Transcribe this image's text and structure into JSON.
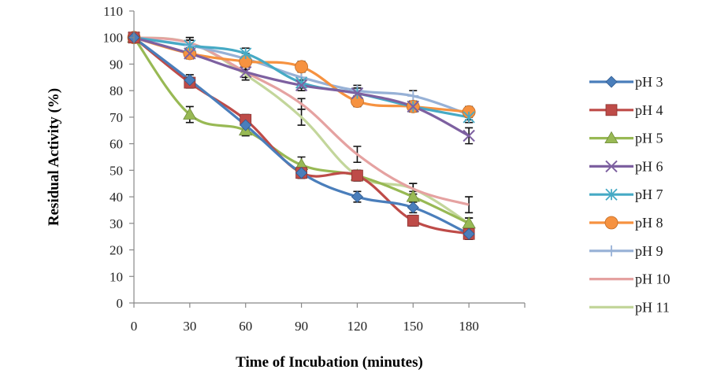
{
  "chart_data": {
    "type": "line",
    "title": "",
    "xlabel": "Time of Incubation (minutes)",
    "ylabel": "Residual Activity (%)",
    "x": [
      0,
      30,
      60,
      90,
      120,
      150,
      180
    ],
    "xlim": [
      0,
      210
    ],
    "ylim": [
      0,
      110
    ],
    "x_ticks": [
      "0",
      "30",
      "60",
      "90",
      "120",
      "150",
      "180"
    ],
    "y_ticks": [
      "0",
      "10",
      "20",
      "30",
      "40",
      "50",
      "60",
      "70",
      "80",
      "90",
      "100",
      "110"
    ],
    "grid": false,
    "legend_position": "right",
    "series": [
      {
        "name": "pH 3",
        "color": "#4A7EBB",
        "marker": "diamond",
        "values": [
          100,
          84,
          67,
          49,
          40,
          36,
          26
        ],
        "errors": [
          2,
          2,
          2,
          2,
          2,
          2,
          2
        ]
      },
      {
        "name": "pH 4",
        "color": "#BE4B48",
        "marker": "square",
        "values": [
          100,
          83,
          69,
          49,
          48,
          31,
          26
        ],
        "errors": [
          2,
          2,
          2,
          2,
          2,
          2,
          2
        ]
      },
      {
        "name": "pH 5",
        "color": "#98B954",
        "marker": "triangle",
        "values": [
          100,
          71,
          65,
          52,
          48,
          40,
          30
        ],
        "errors": [
          2,
          3,
          2,
          3,
          2,
          2,
          2
        ]
      },
      {
        "name": "pH 6",
        "color": "#7D60A0",
        "marker": "x",
        "values": [
          100,
          94,
          87,
          82,
          79,
          74,
          63
        ],
        "errors": [
          2,
          2,
          2,
          2,
          2,
          2,
          3
        ]
      },
      {
        "name": "pH 7",
        "color": "#46AAC5",
        "marker": "asterisk",
        "values": [
          100,
          97,
          94,
          83,
          79,
          74,
          70
        ],
        "errors": [
          2,
          2,
          2,
          2,
          2,
          2,
          2
        ]
      },
      {
        "name": "pH 8",
        "color": "#F69240",
        "marker": "circle",
        "values": [
          100,
          94,
          91,
          89,
          76,
          74,
          72
        ],
        "errors": [
          2,
          2,
          2,
          2,
          2,
          2,
          2
        ]
      },
      {
        "name": "pH 9",
        "color": "#97B1D6",
        "marker": "plus",
        "values": [
          100,
          97,
          92,
          85,
          80,
          78,
          71
        ],
        "errors": [
          2,
          2,
          2,
          2,
          2,
          2,
          2
        ]
      },
      {
        "name": "pH 10",
        "color": "#E5A2A1",
        "marker": "none",
        "values": [
          100,
          98,
          87,
          75,
          56,
          43,
          37
        ],
        "errors": [
          2,
          2,
          2,
          2,
          3,
          2,
          3
        ]
      },
      {
        "name": "pH 11",
        "color": "#C3D69B",
        "marker": "none",
        "values": [
          100,
          98,
          86,
          70,
          48,
          43,
          30
        ],
        "errors": [
          2,
          2,
          2,
          3,
          2,
          2,
          2
        ]
      }
    ]
  }
}
